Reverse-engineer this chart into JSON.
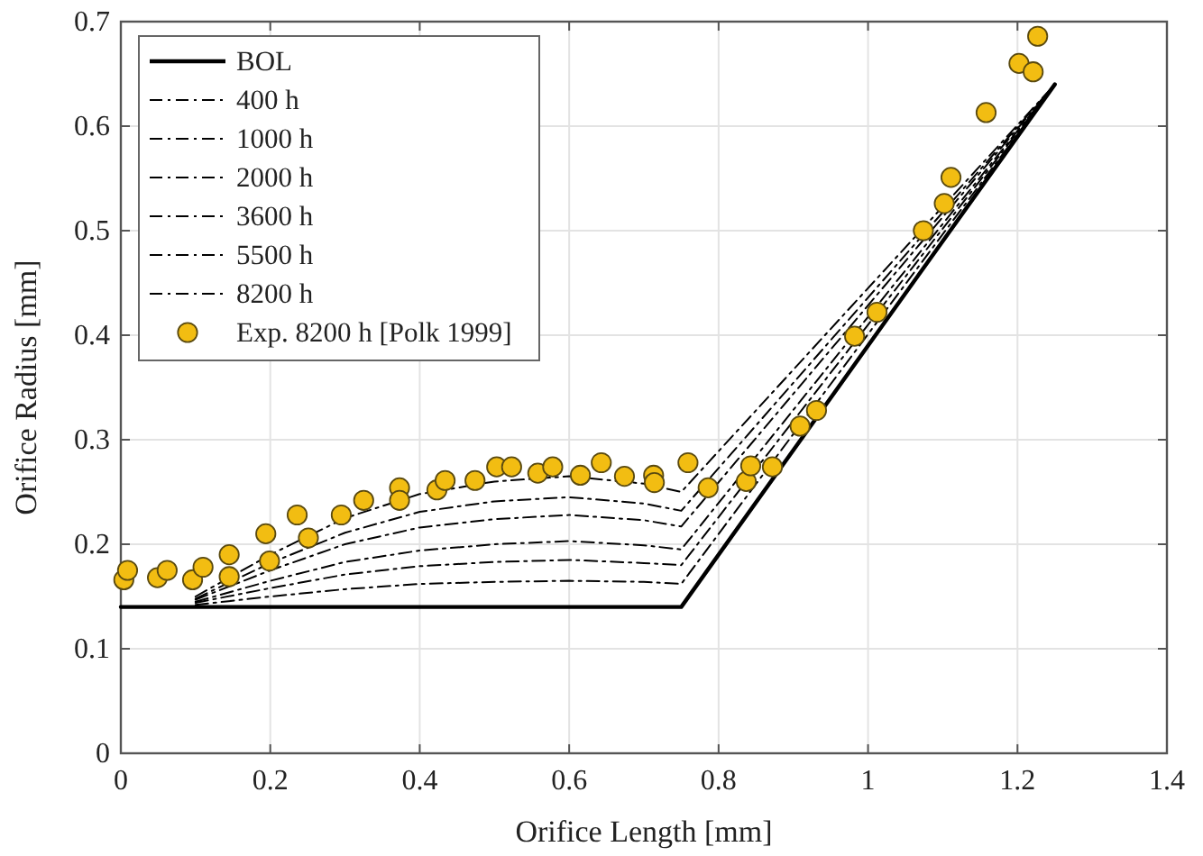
{
  "chart_data": {
    "type": "line",
    "xlabel": "Orifice Length [mm]",
    "ylabel": "Orifice Radius [mm]",
    "xlim": [
      0,
      1.4
    ],
    "ylim": [
      0,
      0.7
    ],
    "xticks": [
      0,
      0.2,
      0.4,
      0.6,
      0.8,
      1,
      1.2,
      1.4
    ],
    "yticks": [
      0,
      0.1,
      0.2,
      0.3,
      0.4,
      0.5,
      0.6,
      0.7
    ],
    "grid": true,
    "legend": "top left",
    "series": [
      {
        "name": "BOL",
        "color": "#000000",
        "line_style": "solid",
        "x": [
          0,
          0.75,
          1.25
        ],
        "values": [
          0.14,
          0.14,
          0.64
        ]
      },
      {
        "name": "400 h",
        "color": "#000000",
        "line_style": "dashdot",
        "x": [
          0.1,
          0.2,
          0.3,
          0.4,
          0.5,
          0.6,
          0.7,
          0.75,
          1.25
        ],
        "values": [
          0.142,
          0.15,
          0.157,
          0.162,
          0.164,
          0.165,
          0.164,
          0.162,
          0.64
        ]
      },
      {
        "name": "1000 h",
        "color": "#000000",
        "line_style": "dashdot",
        "x": [
          0.1,
          0.2,
          0.3,
          0.4,
          0.5,
          0.6,
          0.7,
          0.75,
          1.25
        ],
        "values": [
          0.144,
          0.158,
          0.171,
          0.179,
          0.183,
          0.185,
          0.182,
          0.18,
          0.64
        ]
      },
      {
        "name": "2000 h",
        "color": "#000000",
        "line_style": "dashdot",
        "x": [
          0.1,
          0.2,
          0.3,
          0.4,
          0.5,
          0.6,
          0.7,
          0.75,
          1.25
        ],
        "values": [
          0.145,
          0.165,
          0.183,
          0.194,
          0.2,
          0.203,
          0.199,
          0.195,
          0.64
        ]
      },
      {
        "name": "3600 h",
        "color": "#000000",
        "line_style": "dashdot",
        "x": [
          0.1,
          0.2,
          0.3,
          0.4,
          0.5,
          0.6,
          0.7,
          0.75,
          1.25
        ],
        "values": [
          0.147,
          0.175,
          0.2,
          0.216,
          0.224,
          0.228,
          0.223,
          0.217,
          0.64
        ]
      },
      {
        "name": "5500 h",
        "color": "#000000",
        "line_style": "dashdot",
        "x": [
          0.1,
          0.2,
          0.3,
          0.4,
          0.5,
          0.6,
          0.7,
          0.75,
          1.25
        ],
        "values": [
          0.148,
          0.182,
          0.211,
          0.231,
          0.241,
          0.245,
          0.239,
          0.232,
          0.64
        ]
      },
      {
        "name": "8200 h",
        "color": "#000000",
        "line_style": "dashdot",
        "x": [
          0.1,
          0.2,
          0.3,
          0.4,
          0.5,
          0.6,
          0.7,
          0.75,
          1.25
        ],
        "values": [
          0.15,
          0.19,
          0.225,
          0.248,
          0.26,
          0.265,
          0.258,
          0.25,
          0.64
        ]
      },
      {
        "name": "Exp. 8200 h [Polk 1999]",
        "type": "scatter",
        "marker": "circle",
        "color": "#f2bd12",
        "x": [
          0.004,
          0.009,
          0.049,
          0.062,
          0.096,
          0.11,
          0.145,
          0.145,
          0.194,
          0.199,
          0.236,
          0.251,
          0.295,
          0.325,
          0.373,
          0.373,
          0.423,
          0.434,
          0.474,
          0.503,
          0.523,
          0.558,
          0.578,
          0.615,
          0.643,
          0.674,
          0.713,
          0.714,
          0.759,
          0.786,
          0.837,
          0.843,
          0.872,
          0.909,
          0.931,
          0.982,
          1.012,
          1.074,
          1.102,
          1.111,
          1.158,
          1.202,
          1.221,
          1.227
        ],
        "values": [
          0.166,
          0.175,
          0.168,
          0.175,
          0.166,
          0.178,
          0.19,
          0.169,
          0.21,
          0.184,
          0.228,
          0.206,
          0.228,
          0.242,
          0.254,
          0.242,
          0.252,
          0.261,
          0.261,
          0.274,
          0.274,
          0.268,
          0.274,
          0.266,
          0.278,
          0.265,
          0.266,
          0.259,
          0.278,
          0.254,
          0.26,
          0.275,
          0.274,
          0.313,
          0.328,
          0.399,
          0.422,
          0.5,
          0.526,
          0.551,
          0.613,
          0.66,
          0.652,
          0.686
        ]
      }
    ]
  }
}
